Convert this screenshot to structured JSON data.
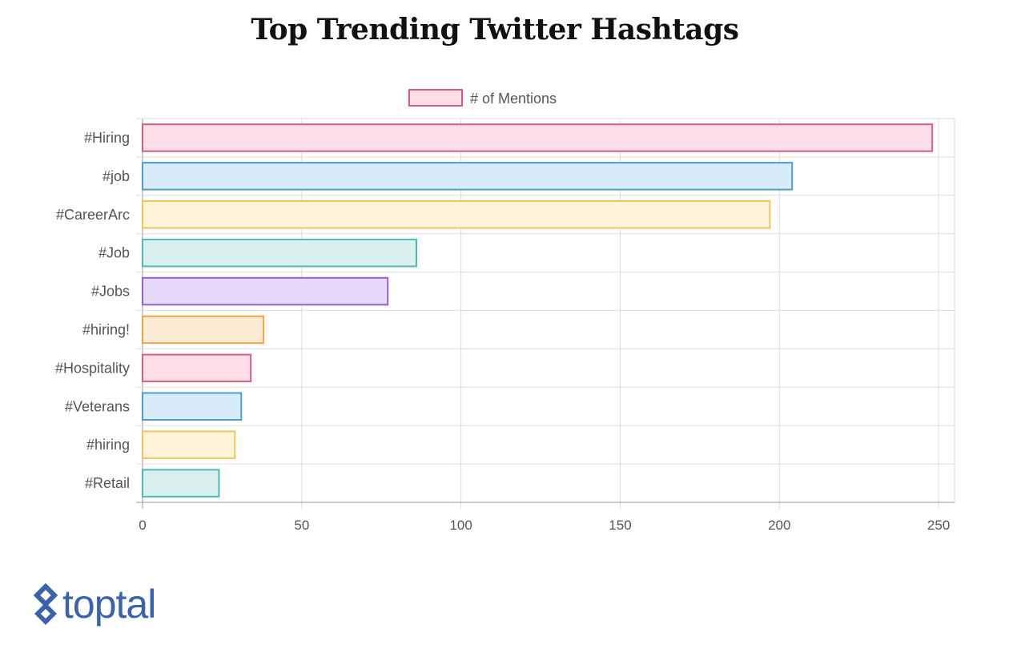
{
  "chart_data": {
    "type": "bar",
    "orientation": "horizontal",
    "title": "Top Trending Twitter Hashtags",
    "categories": [
      "#Hiring",
      "#job",
      "#CareerArc",
      "#Job",
      "#Jobs",
      "#hiring!",
      "#Hospitality",
      "#Veterans",
      "#hiring",
      "#Retail"
    ],
    "series": [
      {
        "name": "# of Mentions",
        "values": [
          248,
          204,
          197,
          86,
          77,
          38,
          34,
          31,
          29,
          24
        ]
      }
    ],
    "xlim": [
      0,
      255
    ],
    "xticks": [
      0,
      50,
      100,
      150,
      200,
      250
    ],
    "grid": true,
    "legend": "top-center",
    "colors": [
      {
        "fill": "#fddde6",
        "stroke": "#d4607f"
      },
      {
        "fill": "#d8ebf8",
        "stroke": "#4a9fd0"
      },
      {
        "fill": "#fff3d9",
        "stroke": "#f0c65a"
      },
      {
        "fill": "#d9f0ef",
        "stroke": "#4fb9b5"
      },
      {
        "fill": "#e8dafc",
        "stroke": "#9561d6"
      },
      {
        "fill": "#fdebd5",
        "stroke": "#f0a63f"
      },
      {
        "fill": "#fddde6",
        "stroke": "#d4607f"
      },
      {
        "fill": "#d8ebf8",
        "stroke": "#4a9fd0"
      },
      {
        "fill": "#fff3d9",
        "stroke": "#f0c65a"
      },
      {
        "fill": "#d9f0ef",
        "stroke": "#4fb9b5"
      }
    ]
  },
  "logo": {
    "text": "toptal",
    "color": "#3c63a8",
    "icon": "toptal-diamond-icon"
  }
}
